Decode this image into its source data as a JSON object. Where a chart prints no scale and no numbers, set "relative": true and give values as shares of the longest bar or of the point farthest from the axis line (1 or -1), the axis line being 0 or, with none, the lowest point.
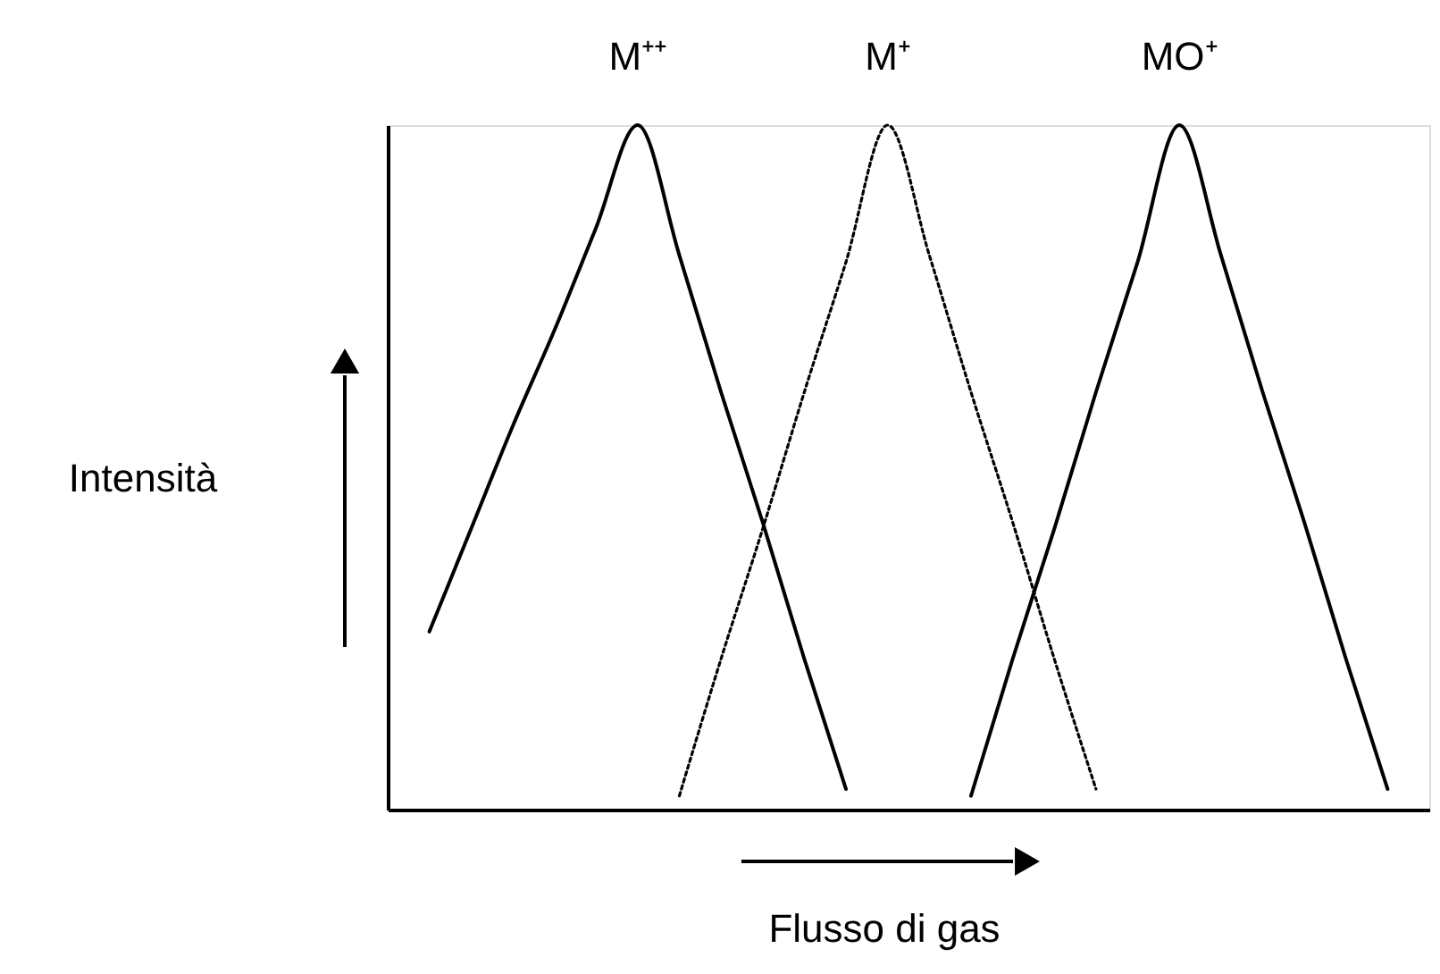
{
  "chart_data": {
    "type": "line",
    "relative": true,
    "xlabel": "Flusso di gas",
    "ylabel": "Intensità",
    "tick_labels": false,
    "legend": false,
    "grid": false,
    "marker": "none",
    "categories": [
      null,
      null,
      null,
      null,
      null,
      null,
      null,
      null,
      null,
      null,
      null,
      null,
      null,
      null,
      null,
      null,
      null,
      null,
      null,
      null,
      null,
      null,
      null,
      null
    ],
    "series": [
      {
        "name": "M⁺⁺",
        "color": "#000000",
        "line_style": "solid",
        "values": [
          0.26,
          0.41,
          0.56,
          0.7,
          0.85,
          1.0,
          0.81,
          0.61,
          0.42,
          0.22,
          0.03,
          null,
          null,
          null,
          null,
          null,
          null,
          null,
          null,
          null,
          null,
          null,
          null,
          null
        ]
      },
      {
        "name": "M⁺",
        "color": "#000000",
        "line_style": "dotted",
        "values": [
          null,
          null,
          null,
          null,
          null,
          null,
          0.02,
          0.22,
          0.41,
          0.61,
          0.8,
          1.0,
          0.81,
          0.61,
          0.42,
          0.22,
          0.03,
          null,
          null,
          null,
          null,
          null,
          null,
          null
        ]
      },
      {
        "name": "MO⁺",
        "color": "#000000",
        "line_style": "solid",
        "values": [
          null,
          null,
          null,
          null,
          null,
          null,
          null,
          null,
          null,
          null,
          null,
          null,
          null,
          0.02,
          0.22,
          0.41,
          0.61,
          0.8,
          1.0,
          0.81,
          0.61,
          0.42,
          0.22,
          0.03
        ]
      }
    ]
  }
}
